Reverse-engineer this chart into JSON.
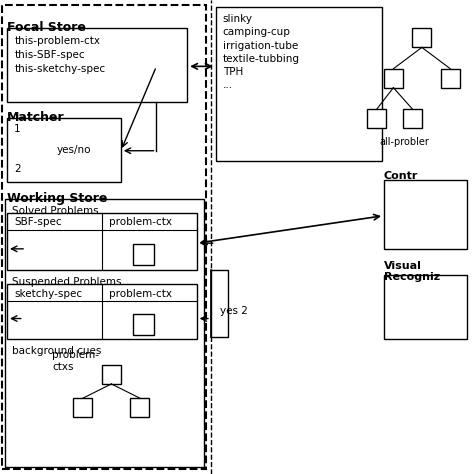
{
  "bg_color": "#ffffff",
  "dashed_border_color": "#000000",
  "solid_border_color": "#000000",
  "text_color": "#000000",
  "figure_size": [
    4.74,
    4.74
  ],
  "dpi": 100,
  "focal_store_label": "Focal Store",
  "focal_box_text": "this-problem-ctx\nthis-SBF-spec\nthis-sketchy-spec",
  "matcher_label": "Matcher",
  "matcher_box_lines": [
    "1",
    "yes/no",
    "2"
  ],
  "working_store_label": "Working Store",
  "solved_label": "Solved Problems",
  "sbf_spec_label": "SBF-spec",
  "problem_ctx_label": "problem-ctx",
  "suspended_label": "Suspended Problems",
  "sketchy_spec_label": "sketchy-spec",
  "bg_cues_label": "background cues",
  "problem_ctxs_label": "problem-\nctxs",
  "right_top_items": [
    "slinky",
    "camping-cup",
    "irrigation-tube",
    "textile-tubbing",
    "TPH",
    "..."
  ],
  "all_problem_label": "all-probler",
  "contr_label": "Contr",
  "visual_label": "Visual\nRecogniz",
  "yes2_label": "yes 2"
}
